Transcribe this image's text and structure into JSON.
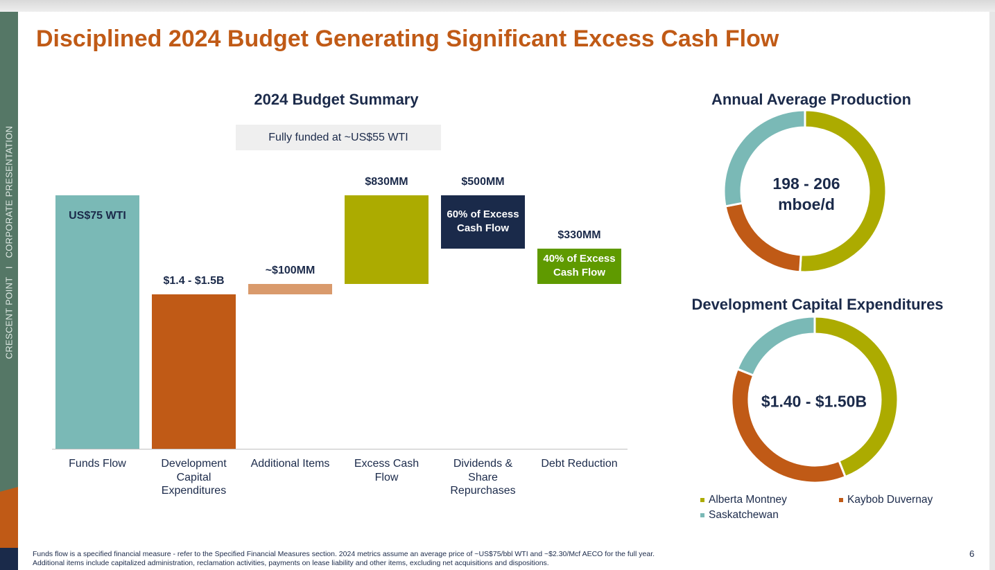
{
  "sidebar_text": "CRESCENT POINT   I   CORPORATE PRESENTATION",
  "title": "Disciplined 2024 Budget Generating Significant Excess Cash Flow",
  "page_number": "6",
  "footnotes": [
    "Funds flow is a specified financial measure - refer to the Specified Financial Measures section. 2024 metrics assume an average  price of ~US$75/bbl WTI and ~$2.30/Mcf AECO for the full year.",
    "Additional items include capitalized administration, reclamation activities, payments on lease liability and other items, excluding net acquisitions and dispositions."
  ],
  "chart_data": [
    {
      "type": "bar",
      "subtype": "waterfall",
      "title": "2024 Budget Summary",
      "annotation": "Fully funded at ~US$55 WTI",
      "unit": "$MM",
      "categories": [
        "Funds Flow",
        "Development Capital Expenditures",
        "Additional Items",
        "Excess Cash Flow",
        "Dividends & Share Repurchases",
        "Debt Reduction"
      ],
      "category_lines": [
        [
          "Funds Flow"
        ],
        [
          "Development",
          "Capital",
          "Expenditures"
        ],
        [
          "Additional Items"
        ],
        [
          "Excess Cash",
          "Flow"
        ],
        [
          "Dividends &",
          "Share",
          "Repurchases"
        ],
        [
          "Debt Reduction"
        ]
      ],
      "values": [
        2380,
        1450,
        100,
        830,
        500,
        330
      ],
      "data_labels": [
        "US$75 WTI",
        "$1.4 - $1.5B",
        "~$100MM",
        "$830MM",
        "$500MM",
        "$330MM"
      ],
      "inner_labels": [
        "",
        "",
        "",
        "",
        "60% of Excess Cash Flow",
        "40% of Excess Cash Flow"
      ],
      "colors": [
        "#7ab9b6",
        "#c05a16",
        "#d99a6c",
        "#acab00",
        "#1a2a4a",
        "#5f9a00"
      ],
      "grid": false
    },
    {
      "type": "pie",
      "subtype": "donut",
      "title": "Annual Average Production",
      "center_label": [
        "198 - 206",
        "mboe/d"
      ],
      "categories": [
        "Alberta Montney",
        "Kaybob Duvernay",
        "Saskatchewan"
      ],
      "values": [
        51,
        21,
        28
      ],
      "colors": [
        "#acab00",
        "#c05a16",
        "#7ab9b6"
      ]
    },
    {
      "type": "pie",
      "subtype": "donut",
      "title": "Development Capital Expenditures",
      "center_label": [
        "$1.40 - $1.50B"
      ],
      "categories": [
        "Alberta Montney",
        "Kaybob Duvernay",
        "Saskatchewan"
      ],
      "values": [
        44,
        37,
        19
      ],
      "colors": [
        "#acab00",
        "#c05a16",
        "#7ab9b6"
      ],
      "legend": "bottom"
    }
  ]
}
